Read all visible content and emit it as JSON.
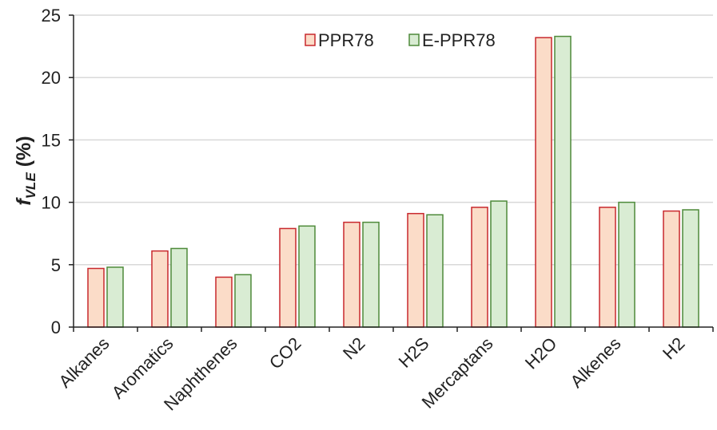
{
  "chart_data": {
    "type": "bar",
    "title": "",
    "xlabel": "",
    "ylabel": "f",
    "ylabel_subscript": "VLE",
    "ylabel_suffix": " (%)",
    "categories": [
      "Alkanes",
      "Aromatics",
      "Naphthenes",
      "CO2",
      "N2",
      "H2S",
      "Mercaptans",
      "H2O",
      "Alkenes",
      "H2"
    ],
    "series": [
      {
        "name": "PPR78",
        "fill": "#fbdcc8",
        "stroke": "#c8282d",
        "values": [
          4.7,
          6.1,
          4.0,
          7.9,
          8.4,
          9.1,
          9.6,
          23.2,
          9.6,
          9.3
        ]
      },
      {
        "name": "E-PPR78",
        "fill": "#d9ecd3",
        "stroke": "#4e8a3a",
        "values": [
          4.8,
          6.3,
          4.2,
          8.1,
          8.4,
          9.0,
          10.1,
          23.3,
          10.0,
          9.4
        ]
      }
    ],
    "ylim": [
      0,
      25
    ],
    "yticks": [
      "0",
      "5",
      "10",
      "15",
      "20",
      "25"
    ],
    "grid": true,
    "legend_position": "top-center"
  }
}
